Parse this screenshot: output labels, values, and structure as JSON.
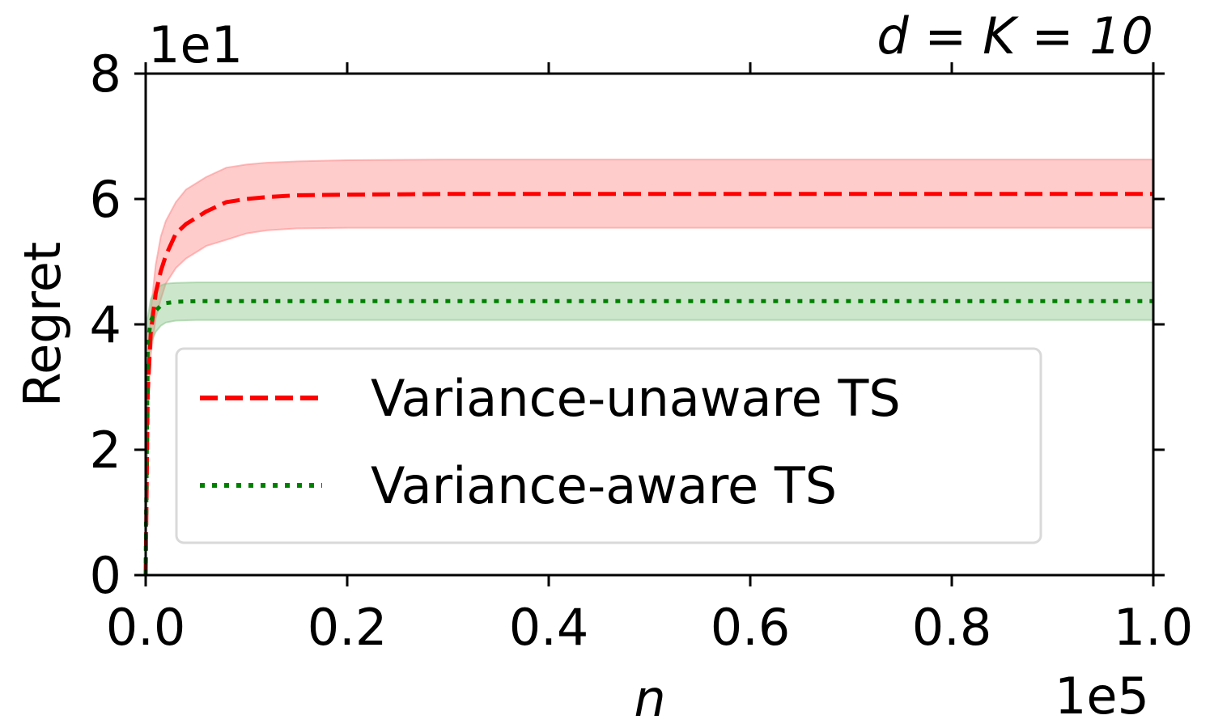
{
  "chart_data": {
    "type": "line",
    "title": "d = K = 10",
    "xlabel": "n",
    "ylabel": "Regret",
    "x_multiplier": "1e5",
    "y_multiplier": "1e1",
    "xlim": [
      0,
      1.0
    ],
    "ylim": [
      0,
      8
    ],
    "x_ticks": [
      "0.0",
      "0.2",
      "0.4",
      "0.6",
      "0.8",
      "1.0"
    ],
    "y_ticks": [
      "0",
      "2",
      "4",
      "6",
      "8"
    ],
    "legend_position": "center",
    "series": [
      {
        "name": "Variance-unaware TS",
        "color": "#ff0000",
        "band_color": "#ff8080",
        "style": "dashed",
        "x": [
          0,
          0.002,
          0.005,
          0.01,
          0.015,
          0.02,
          0.03,
          0.04,
          0.05,
          0.06,
          0.08,
          0.1,
          0.12,
          0.15,
          0.2,
          0.3,
          0.5,
          0.7,
          1.0
        ],
        "mean": [
          0,
          2.9,
          3.85,
          4.5,
          4.85,
          5.1,
          5.45,
          5.6,
          5.7,
          5.8,
          5.95,
          6.0,
          6.03,
          6.06,
          6.07,
          6.08,
          6.08,
          6.08,
          6.08
        ],
        "lower": [
          0,
          2.5,
          3.5,
          4.1,
          4.4,
          4.65,
          4.9,
          5.05,
          5.15,
          5.25,
          5.35,
          5.45,
          5.5,
          5.53,
          5.54,
          5.54,
          5.54,
          5.54,
          5.54
        ],
        "upper": [
          0,
          3.3,
          4.2,
          4.95,
          5.4,
          5.65,
          5.95,
          6.15,
          6.25,
          6.35,
          6.5,
          6.55,
          6.58,
          6.6,
          6.62,
          6.63,
          6.63,
          6.63,
          6.63
        ]
      },
      {
        "name": "Variance-aware TS",
        "color": "#008000",
        "band_color": "#80c080",
        "style": "dotted",
        "x": [
          0,
          0.002,
          0.005,
          0.01,
          0.015,
          0.02,
          0.03,
          0.05,
          0.1,
          0.3,
          0.6,
          1.0
        ],
        "mean": [
          0,
          3.7,
          4.05,
          4.22,
          4.3,
          4.34,
          4.36,
          4.37,
          4.37,
          4.37,
          4.37,
          4.37
        ],
        "lower": [
          0,
          3.3,
          3.7,
          3.88,
          3.98,
          4.03,
          4.06,
          4.07,
          4.07,
          4.07,
          4.07,
          4.07
        ],
        "upper": [
          0,
          4.1,
          4.4,
          4.56,
          4.62,
          4.65,
          4.66,
          4.67,
          4.67,
          4.67,
          4.67,
          4.67
        ]
      }
    ]
  }
}
